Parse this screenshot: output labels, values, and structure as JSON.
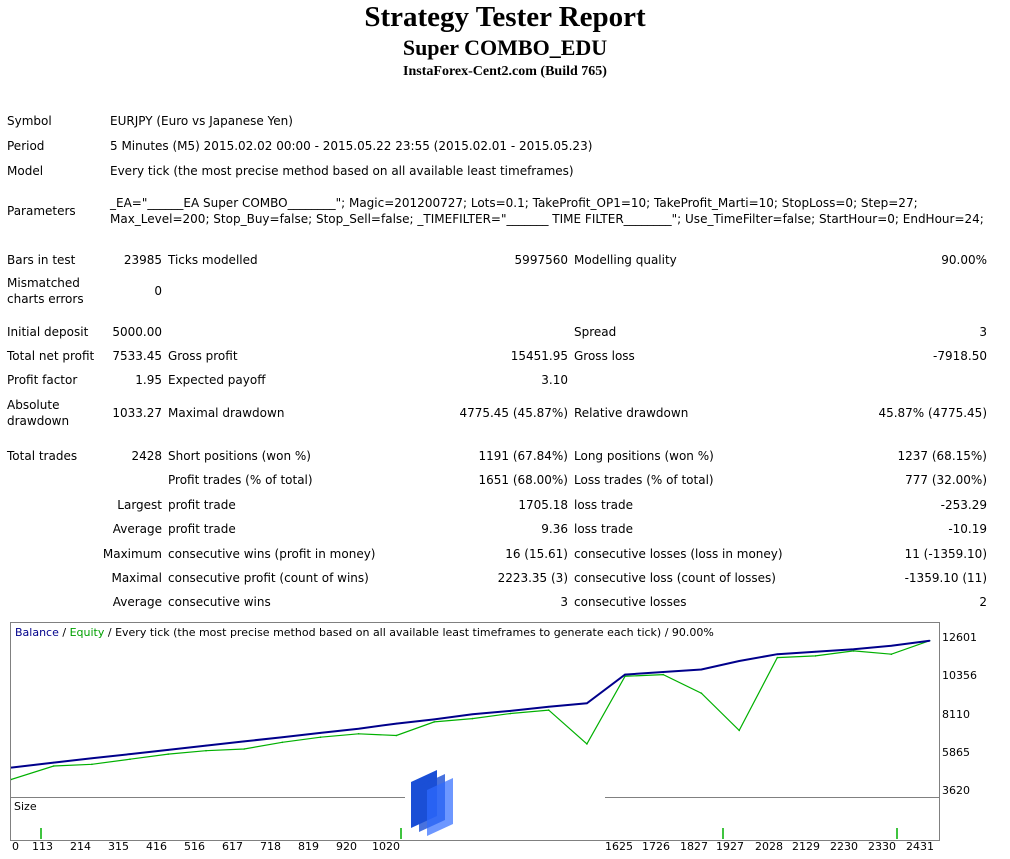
{
  "header": {
    "title": "Strategy Tester Report",
    "ea_name": "Super COMBO_EDU",
    "server": "InstaForex-Cent2.com (Build 765)"
  },
  "info": {
    "symbol_label": "Symbol",
    "symbol": "EURJPY (Euro vs Japanese Yen)",
    "period_label": "Period",
    "period": "5 Minutes (M5) 2015.02.02 00:00 - 2015.05.22 23:55 (2015.02.01 - 2015.05.23)",
    "model_label": "Model",
    "model": "Every tick (the most precise method based on all available least timeframes)",
    "params_label": "Parameters",
    "params": "_EA=\"______EA Super COMBO________\"; Magic=201200727; Lots=0.1; TakeProfit_OP1=10; TakeProfit_Marti=10; StopLoss=0; Step=27; Max_Level=200; Stop_Buy=false; Stop_Sell=false; _TIMEFILTER=\"_______ TIME FILTER________\"; Use_TimeFilter=false; StartHour=0; EndHour=24;"
  },
  "stats": {
    "bars_label": "Bars in test",
    "bars": "23985",
    "ticks_label": "Ticks modelled",
    "ticks": "5997560",
    "quality_label": "Modelling quality",
    "quality": "90.00%",
    "mismatch_label": "Mismatched charts errors",
    "mismatch": "0",
    "deposit_label": "Initial deposit",
    "deposit": "5000.00",
    "spread_label": "Spread",
    "spread": "3",
    "netprofit_label": "Total net profit",
    "netprofit": "7533.45",
    "grossprofit_label": "Gross profit",
    "grossprofit": "15451.95",
    "grossloss_label": "Gross loss",
    "grossloss": "-7918.50",
    "pf_label": "Profit factor",
    "pf": "1.95",
    "ep_label": "Expected payoff",
    "ep": "3.10",
    "absdd_label": "Absolute drawdown",
    "absdd": "1033.27",
    "maxdd_label": "Maximal drawdown",
    "maxdd": "4775.45 (45.87%)",
    "reldd_label": "Relative drawdown",
    "reldd": "45.87% (4775.45)",
    "trades_label": "Total trades",
    "trades": "2428",
    "short_label": "Short positions (won %)",
    "short": "1191 (67.84%)",
    "long_label": "Long positions (won %)",
    "long": "1237 (68.15%)",
    "ptrades_label": "Profit trades (% of total)",
    "ptrades": "1651 (68.00%)",
    "ltrades_label": "Loss trades (% of total)",
    "ltrades": "777 (32.00%)",
    "largest_label": "Largest",
    "avg_label": "Average",
    "max_label": "Maximum",
    "maximal_label": "Maximal",
    "average2_label": "Average",
    "pt_label": "profit trade",
    "lt_label": "loss trade",
    "largest_pt": "1705.18",
    "largest_lt": "-253.29",
    "avg_pt": "9.36",
    "avg_lt": "-10.19",
    "cw_label": "consecutive wins (profit in money)",
    "cw": "16 (15.61)",
    "cl_label": "consecutive losses (loss in money)",
    "cl": "11 (-1359.10)",
    "cp_label": "consecutive profit (count of wins)",
    "cp": "2223.35 (3)",
    "cls_label": "consecutive loss (count of losses)",
    "cls": "-1359.10 (11)",
    "acw_label": "consecutive wins",
    "acw": "3",
    "acl_label": "consecutive losses",
    "acl": "2"
  },
  "chart": {
    "legend_balance": "Balance",
    "legend_sep1": " / ",
    "legend_equity": "Equity",
    "legend_rest": " / Every tick (the most precise method based on all available least timeframes to generate each tick) / 90.00%",
    "size_label": "Size",
    "colors": {
      "balance": "#00008b",
      "equity": "#00b000",
      "size": "#00b000"
    },
    "y_ticks": [
      "12601",
      "10356",
      "8110",
      "5865",
      "3620"
    ],
    "x_ticks": [
      "0",
      "113",
      "214",
      "315",
      "416",
      "516",
      "617",
      "718",
      "819",
      "920",
      "1020",
      "1625",
      "1726",
      "1827",
      "1927",
      "2028",
      "2129",
      "2230",
      "2330",
      "2431"
    ]
  },
  "chart_data": {
    "type": "line",
    "series": [
      {
        "name": "Balance",
        "x": [
          0,
          113,
          214,
          315,
          416,
          516,
          617,
          718,
          819,
          920,
          1020,
          1120,
          1221,
          1322,
          1423,
          1524,
          1625,
          1726,
          1827,
          1927,
          2028,
          2129,
          2230,
          2330,
          2431
        ],
        "values": [
          5000,
          5300,
          5550,
          5800,
          6050,
          6300,
          6550,
          6800,
          7050,
          7300,
          7600,
          7850,
          8150,
          8350,
          8600,
          8800,
          10500,
          10650,
          10800,
          11300,
          11700,
          11850,
          12000,
          12200,
          12500
        ]
      },
      {
        "name": "Equity",
        "x": [
          0,
          113,
          214,
          315,
          416,
          516,
          617,
          718,
          819,
          920,
          1020,
          1120,
          1221,
          1322,
          1423,
          1524,
          1625,
          1726,
          1827,
          1927,
          2028,
          2129,
          2230,
          2330,
          2431
        ],
        "values": [
          4300,
          5100,
          5200,
          5500,
          5800,
          6000,
          6100,
          6500,
          6800,
          7000,
          6900,
          7700,
          7900,
          8200,
          8400,
          6400,
          10400,
          10500,
          9400,
          7200,
          11500,
          11600,
          11900,
          11700,
          12500
        ]
      }
    ],
    "ylim": [
      3620,
      12601
    ],
    "xlim": [
      0,
      2440
    ]
  }
}
